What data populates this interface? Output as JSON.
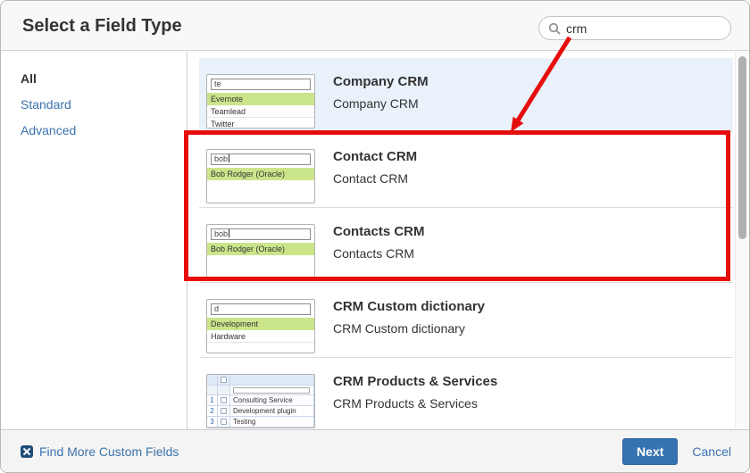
{
  "dialog": {
    "title": "Select a Field Type",
    "search": {
      "value": "crm",
      "icon": "search-icon"
    }
  },
  "sidebar": {
    "items": [
      {
        "label": "All",
        "active": true
      },
      {
        "label": "Standard",
        "active": false
      },
      {
        "label": "Advanced",
        "active": false
      }
    ]
  },
  "list": {
    "items": [
      {
        "title": "Company CRM",
        "description": "Company CRM",
        "selected": true,
        "preview": {
          "type": "dropdown",
          "input": "te",
          "cursor": false,
          "rows": [
            {
              "label": "Evernote",
              "highlighted": true
            },
            {
              "label": "Teamlead",
              "highlighted": false
            },
            {
              "label": "Twitter",
              "highlighted": false
            }
          ]
        }
      },
      {
        "title": "Contact CRM",
        "description": "Contact CRM",
        "selected": false,
        "preview": {
          "type": "dropdown",
          "input": "bob",
          "cursor": true,
          "rows": [
            {
              "label": "Bob Rodger (Oracle)",
              "highlighted": true
            }
          ]
        }
      },
      {
        "title": "Contacts CRM",
        "description": "Contacts CRM",
        "selected": false,
        "preview": {
          "type": "dropdown",
          "input": "bob",
          "cursor": true,
          "rows": [
            {
              "label": "Bob Rodger (Oracle)",
              "highlighted": true
            }
          ]
        }
      },
      {
        "title": "CRM Custom dictionary",
        "description": "CRM Custom dictionary",
        "selected": false,
        "preview": {
          "type": "dropdown",
          "input": "d",
          "cursor": false,
          "rows": [
            {
              "label": "Development",
              "highlighted": true
            },
            {
              "label": "Hardware",
              "highlighted": false
            }
          ]
        }
      },
      {
        "title": "CRM Products & Services",
        "description": "CRM Products & Services",
        "selected": false,
        "preview": {
          "type": "table",
          "rows": [
            {
              "num": "1",
              "label": "Consulting Service"
            },
            {
              "num": "2",
              "label": "Development plugin"
            },
            {
              "num": "3",
              "label": "Testing"
            }
          ]
        }
      }
    ]
  },
  "footer": {
    "find_more_label": "Find More Custom Fields",
    "next_label": "Next",
    "cancel_label": "Cancel"
  },
  "annotation": {
    "color": "#e60d0d",
    "shape": "rectangle highlighting Contact CRM and Contacts CRM, arrow from search box to rectangle"
  },
  "colors": {
    "link_blue": "#3b73af",
    "selected_row_bg": "#e9f1fa",
    "highlight_green": "#cbe58b",
    "next_button_bg": "#3572b0",
    "annotation_red": "#e60d0d"
  }
}
